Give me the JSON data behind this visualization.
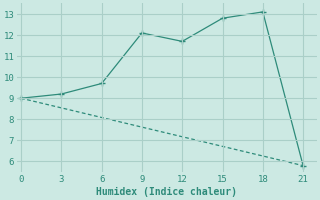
{
  "line1_x": [
    0,
    3,
    6,
    9,
    12,
    15,
    18,
    21
  ],
  "line1_y": [
    9.0,
    9.2,
    9.7,
    12.1,
    11.7,
    12.8,
    13.1,
    5.8
  ],
  "line2_x": [
    0,
    21
  ],
  "line2_y": [
    9.0,
    5.8
  ],
  "color": "#2e8b7a",
  "xlabel": "Humidex (Indice chaleur)",
  "ylim": [
    5.5,
    13.5
  ],
  "xlim": [
    -0.3,
    22.0
  ],
  "yticks": [
    6,
    7,
    8,
    9,
    10,
    11,
    12,
    13
  ],
  "xticks": [
    0,
    3,
    6,
    9,
    12,
    15,
    18,
    21
  ],
  "bg_color": "#cce9e3",
  "grid_color": "#aacfc8"
}
